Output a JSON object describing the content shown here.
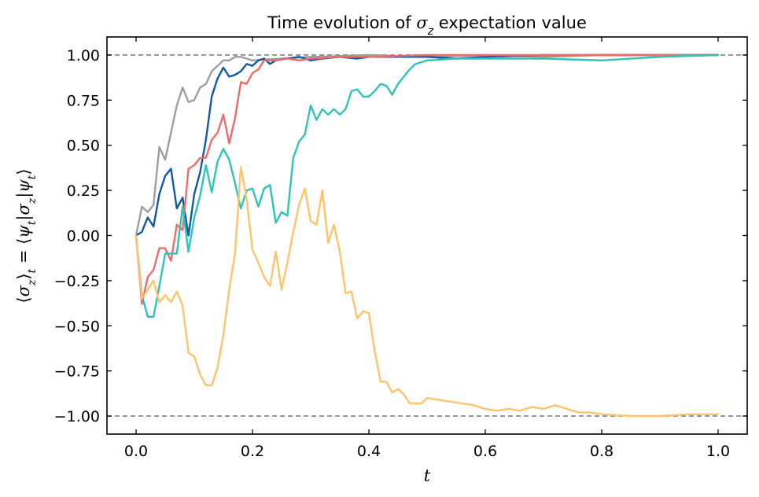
{
  "chart_data": {
    "type": "line",
    "title": "Time evolution of σ_z expectation value",
    "xlabel": "t",
    "ylabel": "⟨σ_z⟩_t = ⟨ψ_t|σ_z|ψ_t⟩",
    "xlim": [
      -0.05,
      1.05
    ],
    "ylim": [
      -1.1,
      1.1
    ],
    "xticks": [
      0.0,
      0.2,
      0.4,
      0.6,
      0.8,
      1.0
    ],
    "xtick_labels": [
      "0.0",
      "0.2",
      "0.4",
      "0.6",
      "0.8",
      "1.0"
    ],
    "yticks": [
      -1.0,
      -0.75,
      -0.5,
      -0.25,
      0.0,
      0.25,
      0.5,
      0.75,
      1.0
    ],
    "ytick_labels": [
      "−1.00",
      "−0.75",
      "−0.50",
      "−0.25",
      "0.00",
      "0.25",
      "0.50",
      "0.75",
      "1.00"
    ],
    "grid": false,
    "ticks_direction": "in",
    "reference_lines": [
      {
        "y": 1.0,
        "color": "#808080",
        "style": "dashed"
      },
      {
        "y": -1.0,
        "color": "#808080",
        "style": "dashed"
      }
    ],
    "series": [
      {
        "color": "#9e9e9e",
        "x": [
          0.0,
          0.01,
          0.02,
          0.03,
          0.04,
          0.05,
          0.06,
          0.07,
          0.08,
          0.09,
          0.1,
          0.11,
          0.12,
          0.13,
          0.14,
          0.15,
          0.16,
          0.17,
          0.18,
          0.19,
          0.2,
          0.25,
          0.3,
          0.4,
          0.5,
          0.6,
          0.7,
          0.8,
          0.9,
          1.0
        ],
        "y": [
          0.0,
          0.16,
          0.13,
          0.17,
          0.49,
          0.42,
          0.57,
          0.72,
          0.82,
          0.74,
          0.75,
          0.82,
          0.84,
          0.91,
          0.94,
          0.97,
          0.97,
          0.99,
          0.99,
          0.98,
          0.97,
          0.98,
          0.99,
          1.0,
          0.99,
          1.0,
          0.99,
          1.0,
          1.0,
          1.0
        ]
      },
      {
        "color": "#1259a3",
        "x": [
          0.0,
          0.01,
          0.02,
          0.03,
          0.04,
          0.05,
          0.06,
          0.07,
          0.08,
          0.09,
          0.1,
          0.11,
          0.12,
          0.13,
          0.14,
          0.15,
          0.16,
          0.17,
          0.18,
          0.19,
          0.2,
          0.21,
          0.22,
          0.23,
          0.24,
          0.26,
          0.28,
          0.3,
          0.32,
          0.35,
          0.38,
          0.4,
          0.45,
          0.5,
          0.55,
          0.6,
          0.7,
          0.8,
          0.9,
          1.0
        ],
        "y": [
          0.0,
          0.02,
          0.1,
          0.05,
          0.23,
          0.33,
          0.37,
          0.15,
          0.21,
          0.0,
          0.23,
          0.35,
          0.53,
          0.77,
          0.87,
          0.93,
          0.88,
          0.89,
          0.91,
          0.95,
          0.94,
          0.97,
          0.98,
          0.95,
          0.97,
          0.98,
          0.99,
          0.97,
          0.98,
          0.99,
          0.98,
          0.99,
          0.99,
          0.99,
          0.98,
          0.99,
          1.0,
          1.0,
          1.0,
          1.0
        ]
      },
      {
        "color": "#f26b6b",
        "x": [
          0.0,
          0.01,
          0.02,
          0.03,
          0.04,
          0.05,
          0.06,
          0.07,
          0.08,
          0.09,
          0.1,
          0.11,
          0.12,
          0.13,
          0.14,
          0.15,
          0.16,
          0.17,
          0.18,
          0.19,
          0.2,
          0.21,
          0.22,
          0.24,
          0.26,
          0.28,
          0.3,
          0.35,
          0.4,
          0.5,
          0.6,
          0.7,
          0.8,
          0.9,
          1.0
        ],
        "y": [
          0.0,
          -0.38,
          -0.23,
          -0.19,
          -0.07,
          -0.07,
          -0.14,
          0.06,
          0.03,
          0.37,
          0.39,
          0.43,
          0.43,
          0.53,
          0.57,
          0.67,
          0.51,
          0.65,
          0.85,
          0.84,
          0.9,
          0.92,
          0.97,
          0.97,
          0.98,
          0.97,
          0.98,
          0.99,
          0.99,
          1.0,
          1.0,
          1.0,
          1.0,
          1.0,
          1.0
        ]
      },
      {
        "color": "#2ec4b6",
        "x": [
          0.0,
          0.01,
          0.02,
          0.03,
          0.04,
          0.05,
          0.06,
          0.07,
          0.08,
          0.09,
          0.1,
          0.11,
          0.12,
          0.13,
          0.14,
          0.15,
          0.16,
          0.17,
          0.18,
          0.19,
          0.2,
          0.21,
          0.22,
          0.23,
          0.24,
          0.25,
          0.26,
          0.27,
          0.28,
          0.29,
          0.3,
          0.31,
          0.32,
          0.33,
          0.34,
          0.35,
          0.36,
          0.37,
          0.38,
          0.39,
          0.4,
          0.41,
          0.42,
          0.43,
          0.44,
          0.45,
          0.46,
          0.47,
          0.48,
          0.49,
          0.5,
          0.55,
          0.6,
          0.7,
          0.8,
          0.9,
          1.0
        ],
        "y": [
          0.0,
          -0.33,
          -0.45,
          -0.45,
          -0.28,
          -0.1,
          -0.1,
          -0.1,
          0.16,
          -0.09,
          0.1,
          0.22,
          0.39,
          0.24,
          0.41,
          0.48,
          0.42,
          0.29,
          0.15,
          0.25,
          0.26,
          0.16,
          0.26,
          0.28,
          0.07,
          0.13,
          0.11,
          0.43,
          0.52,
          0.56,
          0.72,
          0.64,
          0.7,
          0.67,
          0.7,
          0.67,
          0.7,
          0.8,
          0.81,
          0.77,
          0.77,
          0.8,
          0.84,
          0.83,
          0.78,
          0.84,
          0.88,
          0.92,
          0.95,
          0.96,
          0.97,
          0.98,
          0.98,
          0.98,
          0.97,
          0.99,
          1.0
        ]
      },
      {
        "color": "#fdc46b",
        "x": [
          0.0,
          0.01,
          0.02,
          0.03,
          0.04,
          0.05,
          0.06,
          0.07,
          0.08,
          0.09,
          0.1,
          0.11,
          0.12,
          0.13,
          0.14,
          0.15,
          0.16,
          0.17,
          0.18,
          0.19,
          0.2,
          0.21,
          0.22,
          0.23,
          0.24,
          0.25,
          0.26,
          0.27,
          0.28,
          0.29,
          0.3,
          0.31,
          0.32,
          0.33,
          0.34,
          0.35,
          0.36,
          0.37,
          0.38,
          0.39,
          0.4,
          0.41,
          0.42,
          0.43,
          0.44,
          0.45,
          0.46,
          0.47,
          0.48,
          0.49,
          0.5,
          0.52,
          0.54,
          0.56,
          0.58,
          0.6,
          0.62,
          0.64,
          0.66,
          0.68,
          0.7,
          0.72,
          0.74,
          0.76,
          0.78,
          0.8,
          0.85,
          0.9,
          0.95,
          1.0
        ],
        "y": [
          0.0,
          -0.35,
          -0.3,
          -0.25,
          -0.37,
          -0.33,
          -0.37,
          -0.31,
          -0.39,
          -0.65,
          -0.67,
          -0.77,
          -0.83,
          -0.83,
          -0.73,
          -0.55,
          -0.3,
          -0.1,
          0.38,
          0.2,
          -0.08,
          -0.15,
          -0.23,
          -0.28,
          -0.09,
          -0.3,
          -0.15,
          0.02,
          0.17,
          0.26,
          0.08,
          0.06,
          0.25,
          -0.04,
          0.06,
          -0.09,
          -0.32,
          -0.31,
          -0.46,
          -0.42,
          -0.43,
          -0.64,
          -0.81,
          -0.81,
          -0.87,
          -0.85,
          -0.88,
          -0.93,
          -0.93,
          -0.93,
          -0.9,
          -0.91,
          -0.92,
          -0.93,
          -0.94,
          -0.96,
          -0.97,
          -0.96,
          -0.97,
          -0.95,
          -0.96,
          -0.94,
          -0.96,
          -0.98,
          -0.98,
          -0.99,
          -1.0,
          -1.0,
          -0.99,
          -0.99
        ]
      }
    ]
  }
}
